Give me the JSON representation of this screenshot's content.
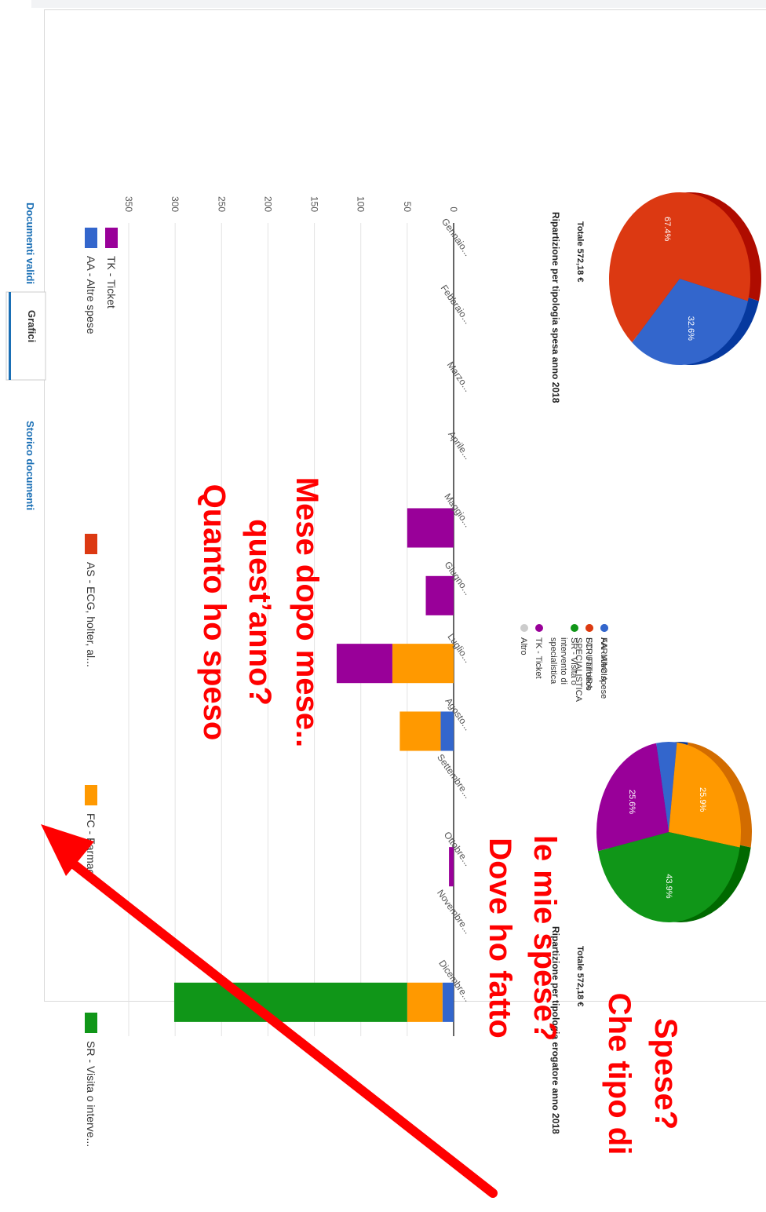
{
  "tabs": [
    {
      "label": "Documenti validi",
      "active": false
    },
    {
      "label": "Grafici",
      "active": true
    },
    {
      "label": "Storico documenti",
      "active": false
    }
  ],
  "legend": [
    {
      "code": "AA",
      "label": "AA - Altre spese",
      "color": "#3366cc"
    },
    {
      "code": "AS",
      "label": "AS - ECG, holter, al...",
      "color": "#dc3912"
    },
    {
      "code": "FC",
      "label": "FC - Farmaco",
      "color": "#ff9900"
    },
    {
      "code": "SR",
      "label": "SR - Visita o interve...",
      "color": "#109618"
    },
    {
      "code": "TK",
      "label": "TK - Ticket",
      "color": "#990099"
    }
  ],
  "bar_chart": {
    "type": "bar",
    "stacked": true,
    "categories": [
      "Gennaio...",
      "Febbraio...",
      "Marzo...",
      "Aprile...",
      "Maggio...",
      "Giugno...",
      "Luglio...",
      "Agosto...",
      "Settembre...",
      "Ottobre...",
      "Novembre...",
      "Dicembre..."
    ],
    "ylim": [
      0,
      350
    ],
    "yticks": [
      "0",
      "50",
      "100",
      "150",
      "200",
      "250",
      "300",
      "350"
    ],
    "series": [
      {
        "name": "AA - Altre spese",
        "color": "#3366cc",
        "values": [
          0,
          0,
          0,
          0,
          0,
          0,
          0,
          14,
          0,
          0,
          0,
          12
        ]
      },
      {
        "name": "AS - ECG, holter, al...",
        "color": "#dc3912",
        "values": [
          0,
          0,
          0,
          0,
          0,
          0,
          0,
          0,
          0,
          0,
          0,
          0
        ]
      },
      {
        "name": "FC - Farmaco",
        "color": "#ff9900",
        "values": [
          0,
          0,
          0,
          0,
          0,
          0,
          66,
          44,
          0,
          0,
          0,
          38
        ]
      },
      {
        "name": "SR - Visita o interve...",
        "color": "#109618",
        "values": [
          0,
          0,
          0,
          0,
          0,
          0,
          0,
          0,
          0,
          0,
          0,
          251
        ]
      },
      {
        "name": "TK - Ticket",
        "color": "#990099",
        "values": [
          0,
          0,
          0,
          0,
          50,
          30,
          60,
          0,
          0,
          5,
          0,
          0
        ]
      }
    ]
  },
  "pie_tipologia": {
    "type": "pie",
    "title": "Ripartizione per tipologia spesa anno 2018",
    "total": "Totale 572,18 €",
    "slices": [
      {
        "label": "AA - Altre spese",
        "value": 4.6,
        "color": "#3366cc",
        "shown": ""
      },
      {
        "label": "FC - Farmaco",
        "value": 25.9,
        "color": "#ff9900",
        "shown": "25.9%"
      },
      {
        "label": "SR - Visita o intervento di specialistica",
        "value": 43.9,
        "color": "#109618",
        "shown": "43.9%"
      },
      {
        "label": "TK - Ticket",
        "value": 25.6,
        "color": "#990099",
        "shown": "25.6%"
      },
      {
        "label": "Altro",
        "value": 0,
        "color": "#cccccc",
        "shown": ""
      }
    ],
    "legend_lines": [
      [
        "AA - Altre spese"
      ],
      [
        "FC - Farmaco"
      ],
      [
        "SR - Visita o",
        "intervento di",
        "specialistica"
      ],
      [
        "TK - Ticket"
      ],
      [
        "Altro"
      ]
    ]
  },
  "pie_erogatore": {
    "type": "pie",
    "title": "Ripartizione per tipologia erogatore anno 2018",
    "total": "Totale 572,18 €",
    "slices": [
      {
        "label": "FARMACIA",
        "value": 32.6,
        "color": "#3366cc",
        "shown": "32.6%"
      },
      {
        "label": "STRUTTURA SPECIALISTICA",
        "value": 67.4,
        "color": "#dc3912",
        "shown": "67.4%"
      }
    ],
    "legend_lines": [
      [
        "FARMACIA"
      ],
      [
        "STRUTTURA",
        "SPECIALISTICA"
      ]
    ]
  },
  "annotations": {
    "q_quanto": [
      "Quanto ho speso",
      "quest’anno?",
      "Mese dopo mese.."
    ],
    "q_dove": [
      "Dove ho fatto",
      "le mie spese?"
    ],
    "q_tipo": [
      "Che tipo di",
      "Spese?"
    ],
    "color": "#ff0000"
  }
}
